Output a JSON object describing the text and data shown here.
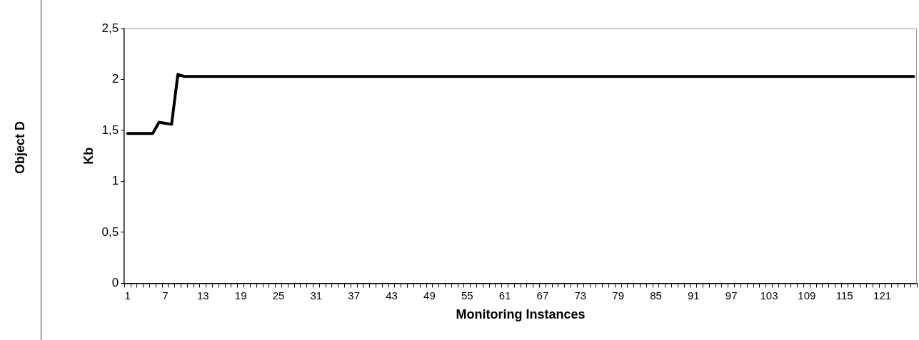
{
  "chart_data": {
    "type": "line",
    "title": "Object D",
    "xlabel": "Monitoring Instances",
    "ylabel": "Kb",
    "categories": [
      "1",
      null,
      null,
      null,
      null,
      null,
      "7",
      null,
      null,
      null,
      null,
      null,
      "13",
      null,
      null,
      null,
      null,
      null,
      "19",
      null,
      null,
      null,
      null,
      null,
      "25",
      null,
      null,
      null,
      null,
      null,
      "31",
      null,
      null,
      null,
      null,
      null,
      "37",
      null,
      null,
      null,
      null,
      null,
      "43",
      null,
      null,
      null,
      null,
      null,
      "49",
      null,
      null,
      null,
      null,
      null,
      "55",
      null,
      null,
      null,
      null,
      null,
      "61",
      null,
      null,
      null,
      null,
      null,
      "67",
      null,
      null,
      null,
      null,
      null,
      "73",
      null,
      null,
      null,
      null,
      null,
      "79",
      null,
      null,
      null,
      null,
      null,
      "85",
      null,
      null,
      null,
      null,
      null,
      "91",
      null,
      null,
      null,
      null,
      null,
      "97",
      null,
      null,
      null,
      null,
      null,
      "103",
      null,
      null,
      null,
      null,
      null,
      "109",
      null,
      null,
      null,
      null,
      null,
      "115",
      null,
      null,
      null,
      null,
      null,
      "121",
      null,
      null,
      null,
      null,
      null
    ],
    "series": [
      {
        "color": "#000000",
        "values": [
          1.47,
          1.47,
          1.47,
          1.47,
          1.47,
          1.58,
          1.57,
          1.56,
          2.05,
          2.03,
          2.03,
          2.03,
          2.03,
          2.03,
          2.03,
          2.03,
          2.03,
          2.03,
          2.03,
          2.03,
          2.03,
          2.03,
          2.03,
          2.03,
          2.03,
          2.03,
          2.03,
          2.03,
          2.03,
          2.03,
          2.03,
          2.03,
          2.03,
          2.03,
          2.03,
          2.03,
          2.03,
          2.03,
          2.03,
          2.03,
          2.03,
          2.03,
          2.03,
          2.03,
          2.03,
          2.03,
          2.03,
          2.03,
          2.03,
          2.03,
          2.03,
          2.03,
          2.03,
          2.03,
          2.03,
          2.03,
          2.03,
          2.03,
          2.03,
          2.03,
          2.03,
          2.03,
          2.03,
          2.03,
          2.03,
          2.03,
          2.03,
          2.03,
          2.03,
          2.03,
          2.03,
          2.03,
          2.03,
          2.03,
          2.03,
          2.03,
          2.03,
          2.03,
          2.03,
          2.03,
          2.03,
          2.03,
          2.03,
          2.03,
          2.03,
          2.03,
          2.03,
          2.03,
          2.03,
          2.03,
          2.03,
          2.03,
          2.03,
          2.03,
          2.03,
          2.03,
          2.03,
          2.03,
          2.03,
          2.03,
          2.03,
          2.03,
          2.03,
          2.03,
          2.03,
          2.03,
          2.03,
          2.03,
          2.03,
          2.03,
          2.03,
          2.03,
          2.03,
          2.03,
          2.03,
          2.03,
          2.03,
          2.03,
          2.03,
          2.03,
          2.03,
          2.03,
          2.03,
          2.03,
          2.03,
          2.03
        ]
      }
    ],
    "ylim": [
      0,
      2.5
    ],
    "yticks": [
      0,
      {
        "value": 0.5,
        "label": "0,5"
      },
      1,
      {
        "value": 1.5,
        "label": "1,5"
      },
      2,
      {
        "value": 2.5,
        "label": "2,5"
      }
    ],
    "grid": false,
    "legend": false,
    "marker": "none",
    "line_style": "solid"
  }
}
